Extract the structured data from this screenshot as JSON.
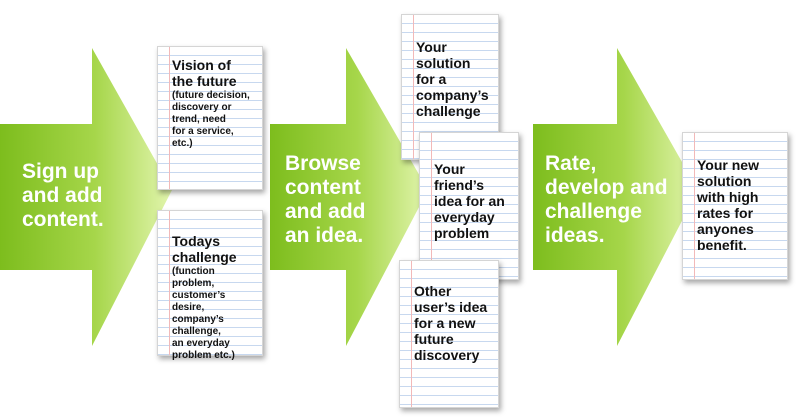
{
  "colors": {
    "arrow_dark": "#7dbd1d",
    "arrow_light": "#dff3a7",
    "text_on_arrow": "#ffffff",
    "note_line": "#c7d8ef",
    "note_margin": "#f2b9b9"
  },
  "steps": [
    {
      "label": "Sign up\nand add\ncontent."
    },
    {
      "label": "Browse\ncontent\nand add\nan idea."
    },
    {
      "label": "Rate,\ndevelop and\nchallenge\nideas."
    }
  ],
  "notes": {
    "vision": {
      "title": "Vision of\nthe future",
      "detail": "(future decision,\ndiscovery or\ntrend, need\nfor a service,\netc.)"
    },
    "today": {
      "title": "Todays\nchallenge",
      "detail": "(function problem,\ncustomer’s desire,\ncompany’s\nchallenge,\nan everyday\nproblem etc.)"
    },
    "company": {
      "title": "Your\nsolution\nfor a\ncompany’s\nchallenge"
    },
    "friend": {
      "title": "Your friend’s\nidea for an\neveryday\nproblem"
    },
    "other": {
      "title": "Other\nuser’s idea\nfor a new\nfuture\ndiscovery"
    },
    "final": {
      "title": "Your new\nsolution\nwith high\nrates for\nanyones\nbenefit."
    }
  }
}
